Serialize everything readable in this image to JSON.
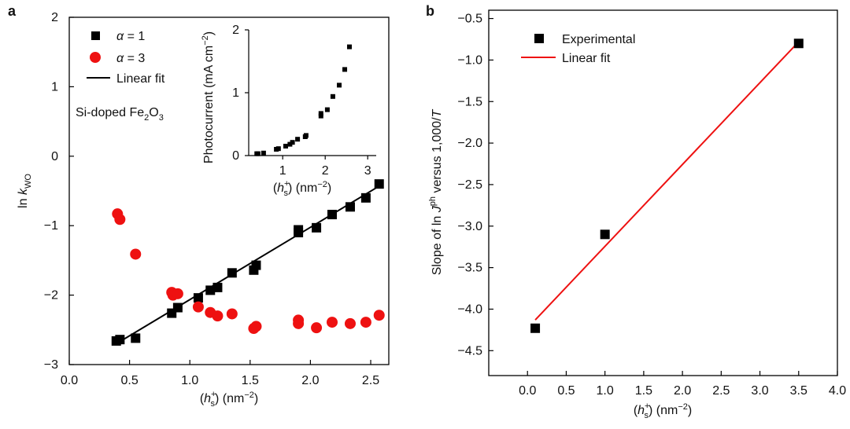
{
  "chart_data": [
    {
      "panel": "a",
      "type": "scatter",
      "xlabel_parts": {
        "pre": "(",
        "sym": "h",
        "sup": "+",
        "sub": "s",
        "post": ") (nm",
        "unit_sup": "−2",
        "close": ")"
      },
      "ylabel_parts": {
        "pre": "ln ",
        "sym": "k",
        "sub": "WO"
      },
      "xlim": [
        0.0,
        2.65
      ],
      "ylim": [
        -3,
        2
      ],
      "xticks": [
        0.0,
        0.5,
        1.0,
        1.5,
        2.0,
        2.5
      ],
      "xtick_labels": [
        "0.0",
        "0.5",
        "1.0",
        "1.5",
        "2.0",
        "2.5"
      ],
      "yticks": [
        -3,
        -2,
        -1,
        0,
        1,
        2
      ],
      "ytick_labels": [
        "−3",
        "−2",
        "−1",
        "0",
        "1",
        "2"
      ],
      "annotation": {
        "pre": "Si-doped Fe",
        "sub1": "2",
        "mid": "O",
        "sub2": "3"
      },
      "legend": [
        {
          "greek": "α",
          "rest": " = 1",
          "marker": "square",
          "color": "#000000"
        },
        {
          "greek": "α",
          "rest": " = 3",
          "marker": "circle",
          "color": "#ee1111"
        },
        {
          "label": "Linear fit",
          "marker": "line",
          "color": "#000000"
        }
      ],
      "series": [
        {
          "name": "α = 1",
          "color": "#000000",
          "marker": "square",
          "x": [
            0.39,
            0.42,
            0.55,
            0.85,
            0.9,
            1.07,
            1.17,
            1.23,
            1.35,
            1.53,
            1.55,
            1.9,
            1.9,
            2.05,
            2.18,
            2.33,
            2.46,
            2.57
          ],
          "y": [
            -2.66,
            -2.64,
            -2.62,
            -2.26,
            -2.18,
            -2.04,
            -1.93,
            -1.89,
            -1.68,
            -1.64,
            -1.57,
            -1.1,
            -1.06,
            -1.03,
            -0.84,
            -0.73,
            -0.6,
            -0.4
          ]
        },
        {
          "name": "α = 3",
          "color": "#ee1111",
          "marker": "circle",
          "x": [
            0.4,
            0.42,
            0.55,
            0.85,
            0.86,
            0.9,
            1.07,
            1.17,
            1.23,
            1.35,
            1.53,
            1.55,
            1.9,
            1.9,
            2.05,
            2.18,
            2.33,
            2.46,
            2.57
          ],
          "y": [
            -0.83,
            -0.91,
            -1.41,
            -1.96,
            -2.0,
            -1.98,
            -2.17,
            -2.25,
            -2.3,
            -2.27,
            -2.48,
            -2.45,
            -2.36,
            -2.41,
            -2.47,
            -2.39,
            -2.41,
            -2.39,
            -2.29
          ]
        }
      ],
      "fit": {
        "name": "Linear fit",
        "x": [
          0.39,
          2.58
        ],
        "y": [
          -2.7,
          -0.42
        ],
        "color": "#000000"
      },
      "inset": {
        "type": "scatter",
        "xlabel_parts": {
          "pre": "(",
          "sym": "h",
          "sup": "+",
          "sub": "s",
          "post": ") (nm",
          "unit_sup": "−2",
          "close": ")"
        },
        "ylabel_parts": {
          "pre": "Photocurrent (mA cm",
          "sup": "−2",
          "post": ")"
        },
        "xlim": [
          0.2,
          3.2
        ],
        "ylim": [
          0,
          2
        ],
        "xticks": [
          1,
          2,
          3
        ],
        "xtick_labels": [
          "1",
          "2",
          "3"
        ],
        "yticks": [
          0,
          1,
          2
        ],
        "ytick_labels": [
          "0",
          "1",
          "2"
        ],
        "x": [
          0.39,
          0.42,
          0.55,
          0.85,
          0.9,
          1.07,
          1.17,
          1.23,
          1.35,
          1.53,
          1.55,
          1.9,
          1.9,
          2.05,
          2.18,
          2.33,
          2.46,
          2.57
        ],
        "y": [
          0.03,
          0.03,
          0.04,
          0.1,
          0.11,
          0.15,
          0.18,
          0.21,
          0.26,
          0.3,
          0.32,
          0.63,
          0.67,
          0.73,
          0.94,
          1.12,
          1.37,
          1.73
        ]
      }
    },
    {
      "panel": "b",
      "type": "scatter",
      "xlabel_parts": {
        "pre": "(",
        "sym": "h",
        "sup": "+",
        "sub": "s",
        "post": ") (nm",
        "unit_sup": "−2",
        "close": ")"
      },
      "ylabel_parts": {
        "pre": "Slope of ln ",
        "sym": "J",
        "sup": "ph",
        "post": " versus 1,000/",
        "sym2": "T"
      },
      "xlim": [
        -0.5,
        4.0
      ],
      "ylim": [
        -4.8,
        -0.4
      ],
      "xticks": [
        0.0,
        0.5,
        1.0,
        1.5,
        2.0,
        2.5,
        3.0,
        3.5,
        4.0
      ],
      "xtick_labels": [
        "0.0",
        "0.5",
        "1.0",
        "1.5",
        "2.0",
        "2.5",
        "3.0",
        "3.5",
        "4.0"
      ],
      "yticks": [
        -4.5,
        -4.0,
        -3.5,
        -3.0,
        -2.5,
        -2.0,
        -1.5,
        -1.0,
        -0.5
      ],
      "ytick_labels": [
        "−4.5",
        "−4.0",
        "−3.5",
        "−3.0",
        "−2.5",
        "−2.0",
        "−1.5",
        "−1.0",
        "−0.5"
      ],
      "legend": [
        {
          "label": "Experimental",
          "marker": "square",
          "color": "#000000"
        },
        {
          "label": "Linear fit",
          "marker": "line",
          "color": "#ee1111"
        }
      ],
      "series": [
        {
          "name": "Experimental",
          "color": "#000000",
          "marker": "square",
          "x": [
            0.1,
            1.0,
            3.5
          ],
          "y": [
            -4.23,
            -3.1,
            -0.8
          ]
        }
      ],
      "fit": {
        "name": "Linear fit",
        "x": [
          0.1,
          3.5
        ],
        "y": [
          -4.13,
          -0.78
        ],
        "color": "#ee1111"
      }
    }
  ]
}
